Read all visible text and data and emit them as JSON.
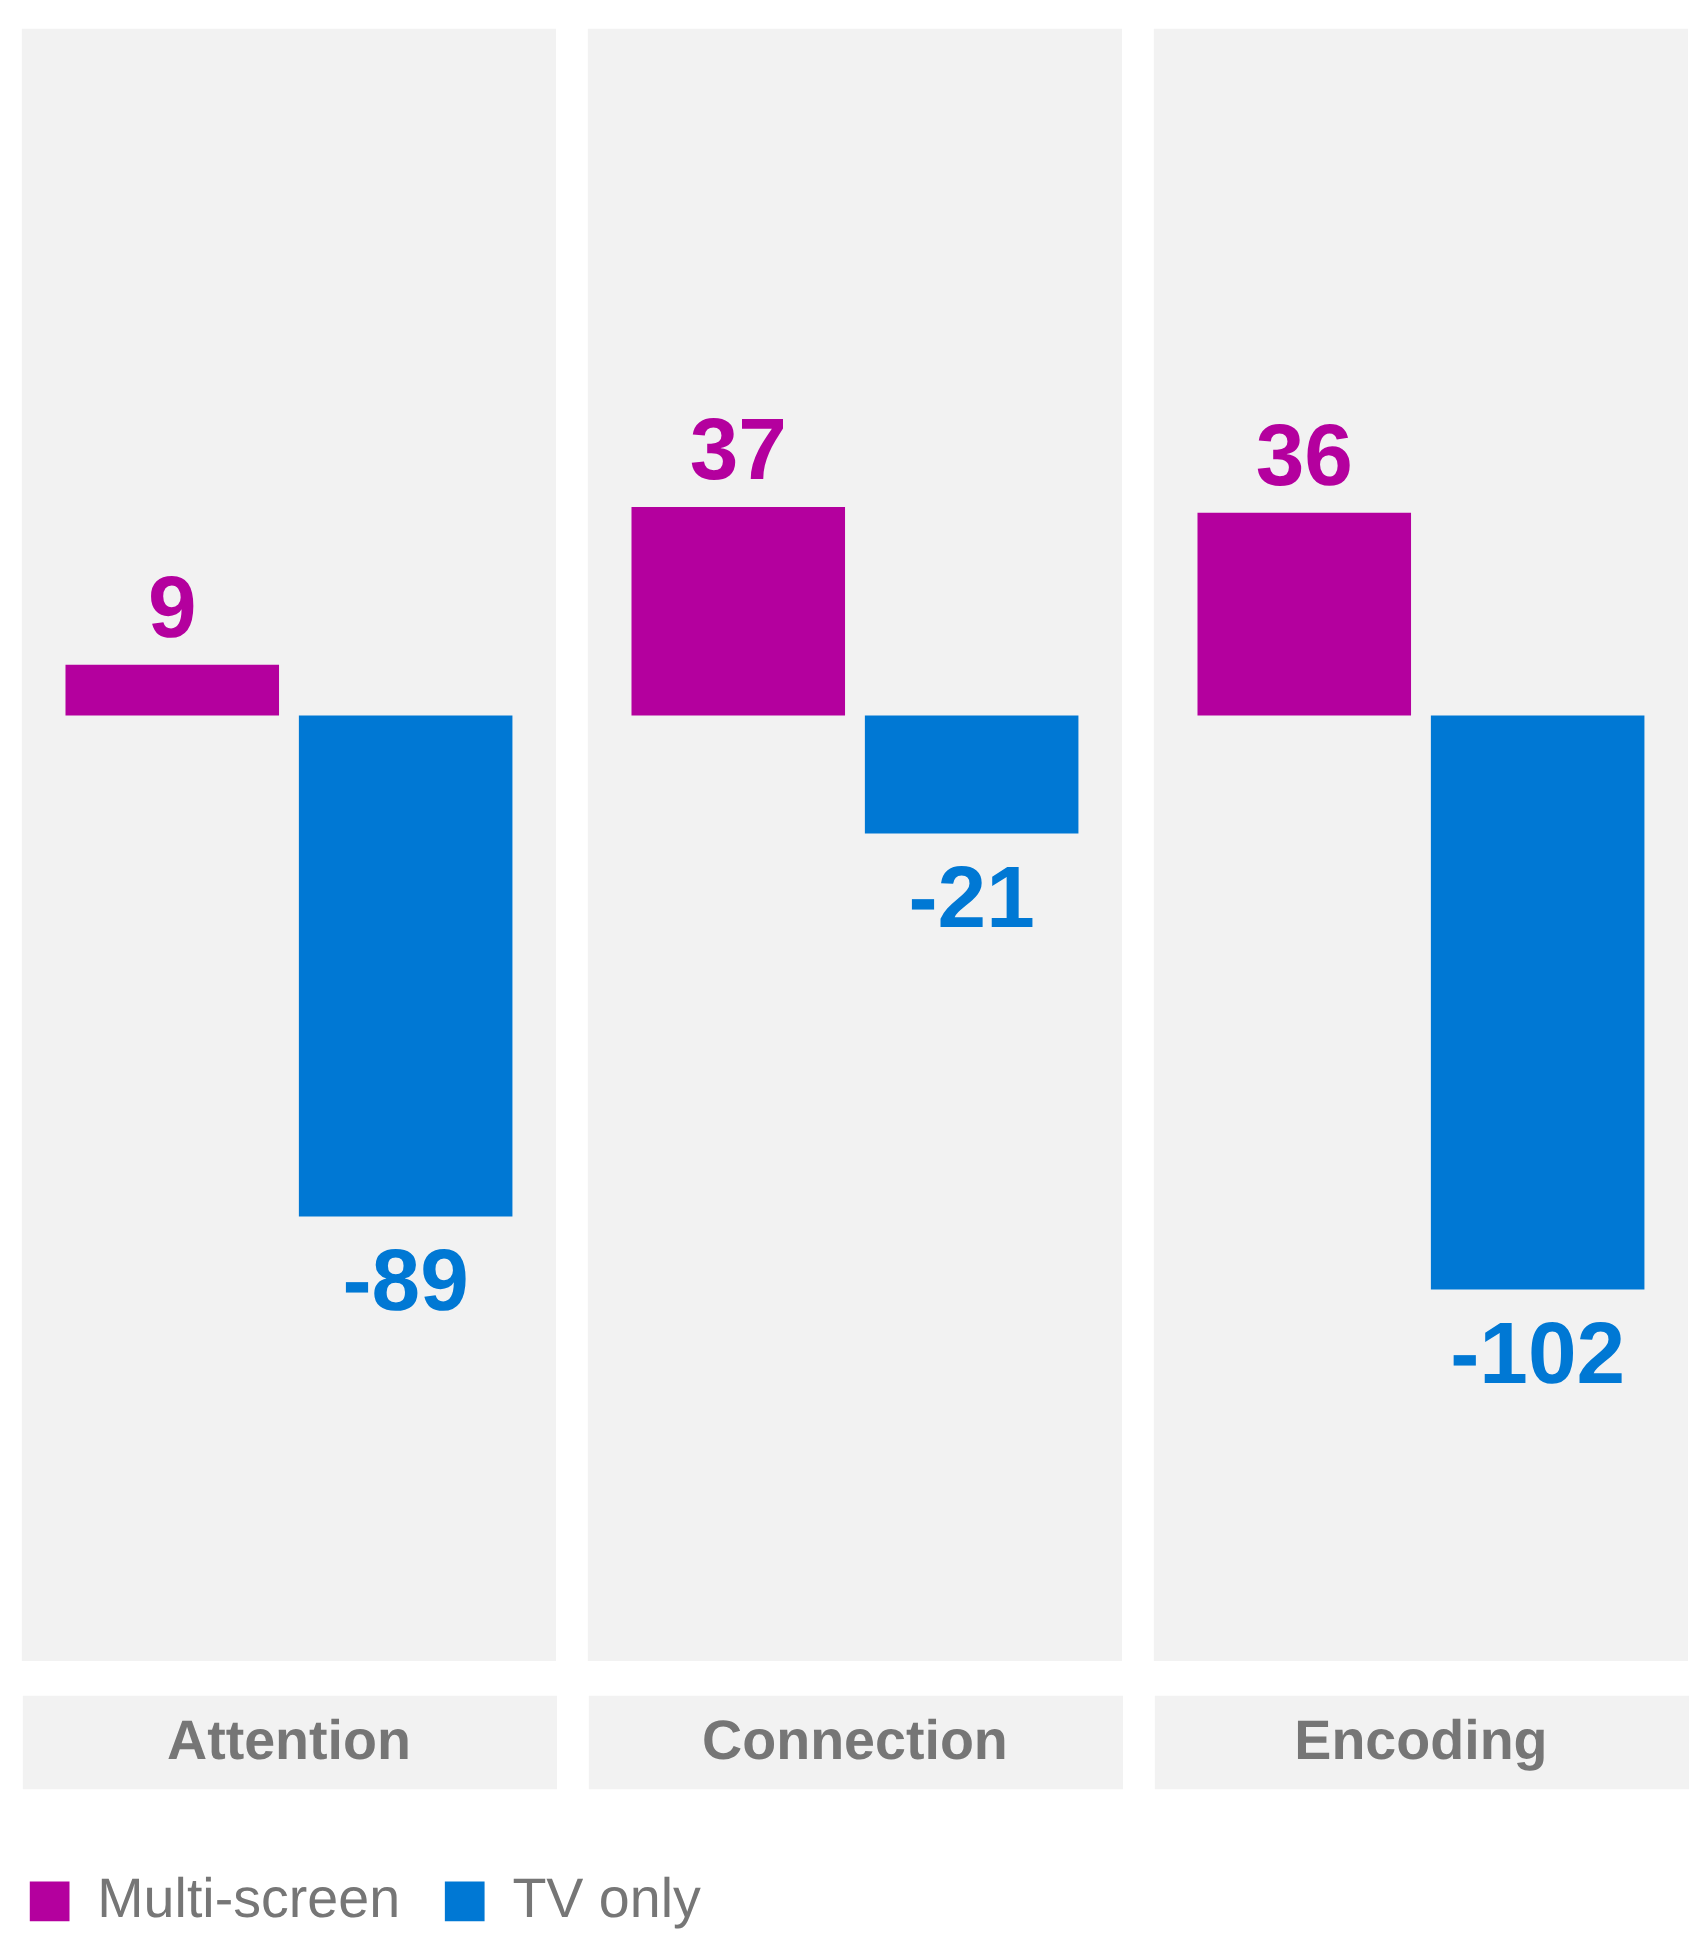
{
  "chart_data": {
    "type": "bar",
    "categories": [
      "Attention",
      "Connection",
      "Encoding"
    ],
    "series": [
      {
        "name": "Multi-screen",
        "color": "#b4009e",
        "values": [
          9,
          37,
          36
        ]
      },
      {
        "name": "TV only",
        "color": "#0078d4",
        "values": [
          -89,
          -21,
          -102
        ]
      }
    ],
    "ylim": [
      -168,
      122
    ],
    "bands": [
      {
        "axis": "x",
        "from": "Attention",
        "to": "Attention",
        "color": "#f2f2f2"
      },
      {
        "axis": "x",
        "from": "Connection",
        "to": "Connection",
        "color": "#f2f2f2"
      },
      {
        "axis": "x",
        "from": "Encoding",
        "to": "Encoding",
        "color": "#f2f2f2"
      }
    ],
    "data_labels": true,
    "legend": "bottom left",
    "tick_labels": "x"
  }
}
